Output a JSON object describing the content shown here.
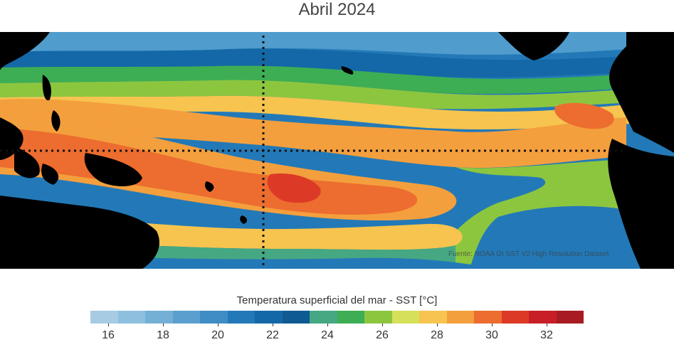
{
  "title": "Abril 2024",
  "colorbar": {
    "label": "Temperatura superficial del mar - SST  [°C]",
    "ticks": [
      "16",
      "18",
      "20",
      "22",
      "24",
      "26",
      "28",
      "30",
      "32"
    ],
    "colors": [
      "#a6cbe3",
      "#8ebfde",
      "#74afd6",
      "#5a9fcd",
      "#3f8dc4",
      "#2379b7",
      "#1468a7",
      "#0f5a92",
      "#45a882",
      "#3dae53",
      "#8cc63f",
      "#d6e05a",
      "#f6c44f",
      "#f49f3d",
      "#ec6d2f",
      "#dc3a26",
      "#c81e25",
      "#a81b22"
    ]
  },
  "credit": "Fuente: NOAA OI SST V2 High Resolution Dataset"
}
